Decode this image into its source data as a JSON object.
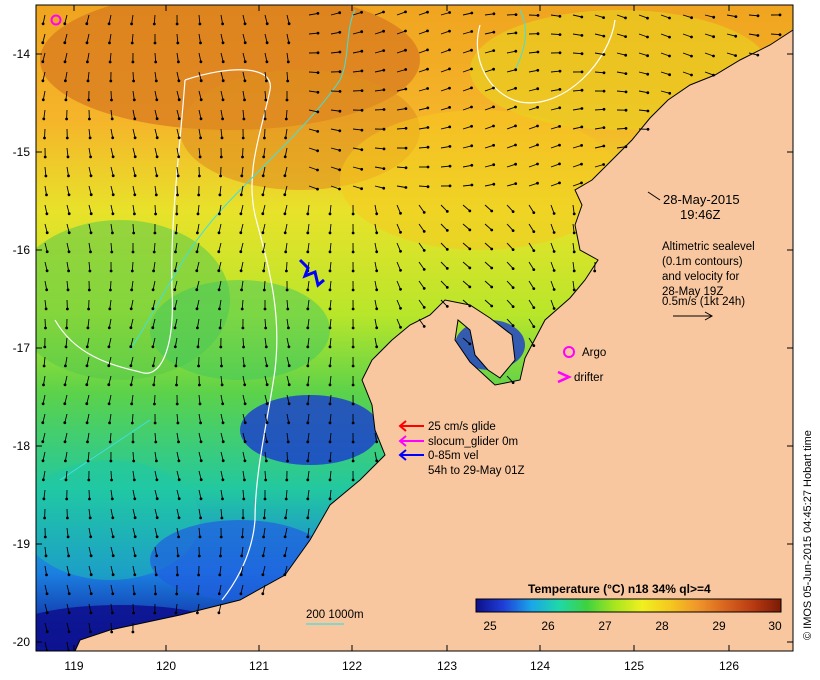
{
  "axes": {
    "lon_ticks": [
      "119",
      "120",
      "121",
      "122",
      "123",
      "124",
      "125",
      "126"
    ],
    "lat_ticks": [
      "-14",
      "-15",
      "-16",
      "-17",
      "-18",
      "-19",
      "-20"
    ]
  },
  "date_label": {
    "line1": "28-May-2015",
    "line2": "19:46Z"
  },
  "altimetry_note": {
    "lines": [
      "Altimetric sealevel",
      "(0.1m contours)",
      "and velocity for",
      "28-May 19Z",
      "0.5m/s (1kt 24h)"
    ]
  },
  "legend": {
    "argo": "Argo",
    "drifter": "drifter",
    "glide": "25 cm/s glide",
    "slocum": "slocum_glider 0m",
    "vel": "0-85m vel",
    "period": "54h to 29-May 01Z"
  },
  "depth_scale": {
    "label": "200  1000m"
  },
  "colorbar": {
    "title": "Temperature (°C) n18 34% ql>=4",
    "ticks": [
      "25",
      "26",
      "27",
      "28",
      "29",
      "30"
    ],
    "colors": [
      "#0d0f8a",
      "#1f3fd8",
      "#1aa6e8",
      "#1fd8a8",
      "#3fd23f",
      "#a8e61f",
      "#f0f01f",
      "#f5c81f",
      "#f0962a",
      "#d8641f",
      "#b83a12",
      "#7a1a06"
    ]
  },
  "credit": "© IMOS 05-Jun-2015 04:45:27 Hobart time",
  "colors": {
    "land": "#f8c79f",
    "glide_arrow": "#ff0000",
    "slocum_arrow": "#ff00ff",
    "vel_arrow": "#0000ff",
    "argo_marker": "#ff00ff"
  }
}
